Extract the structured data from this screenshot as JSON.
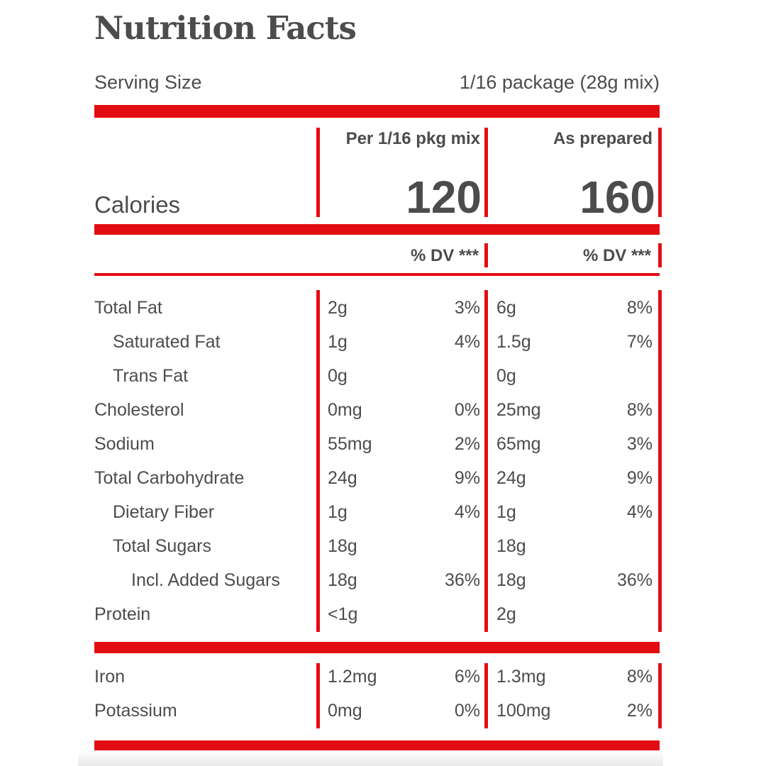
{
  "colors": {
    "red": "#e20d12",
    "text": "#4c4c4c"
  },
  "title": "Nutrition Facts",
  "serving": {
    "label": "Serving Size",
    "value": "1/16 package (28g mix)"
  },
  "calories": {
    "label": "Calories",
    "col1_header": "Per 1/16 pkg mix",
    "col2_header": "As prepared",
    "col1_value": "120",
    "col2_value": "160"
  },
  "dv_header": {
    "col1": "% DV ***",
    "col2": "% DV ***"
  },
  "nutrients": {
    "rows": [
      {
        "label": "Total Fat",
        "c1_amount": "2g",
        "c1_dv": "3%",
        "c2_amount": "6g",
        "c2_dv": "8%"
      },
      {
        "label": "Saturated Fat",
        "c1_amount": "1g",
        "c1_dv": "4%",
        "c2_amount": "1.5g",
        "c2_dv": "7%"
      },
      {
        "label": "Trans Fat",
        "c1_amount": "0g",
        "c1_dv": "",
        "c2_amount": "0g",
        "c2_dv": ""
      },
      {
        "label": "Cholesterol",
        "c1_amount": "0mg",
        "c1_dv": "0%",
        "c2_amount": "25mg",
        "c2_dv": "8%"
      },
      {
        "label": "Sodium",
        "c1_amount": "55mg",
        "c1_dv": "2%",
        "c2_amount": "65mg",
        "c2_dv": "3%"
      },
      {
        "label": "Total Carbohydrate",
        "c1_amount": "24g",
        "c1_dv": "9%",
        "c2_amount": "24g",
        "c2_dv": "9%"
      },
      {
        "label": "Dietary Fiber",
        "c1_amount": "1g",
        "c1_dv": "4%",
        "c2_amount": "1g",
        "c2_dv": "4%"
      },
      {
        "label": "Total Sugars",
        "c1_amount": "18g",
        "c1_dv": "",
        "c2_amount": "18g",
        "c2_dv": ""
      },
      {
        "label": "Incl. Added Sugars",
        "c1_amount": "18g",
        "c1_dv": "36%",
        "c2_amount": "18g",
        "c2_dv": "36%"
      },
      {
        "label": "Protein",
        "c1_amount": "<1g",
        "c1_dv": "",
        "c2_amount": "2g",
        "c2_dv": ""
      }
    ]
  },
  "minerals": {
    "rows": [
      {
        "label": "Iron",
        "c1_amount": "1.2mg",
        "c1_dv": "6%",
        "c2_amount": "1.3mg",
        "c2_dv": "8%"
      },
      {
        "label": "Potassium",
        "c1_amount": "0mg",
        "c1_dv": "0%",
        "c2_amount": "100mg",
        "c2_dv": "2%"
      }
    ]
  }
}
